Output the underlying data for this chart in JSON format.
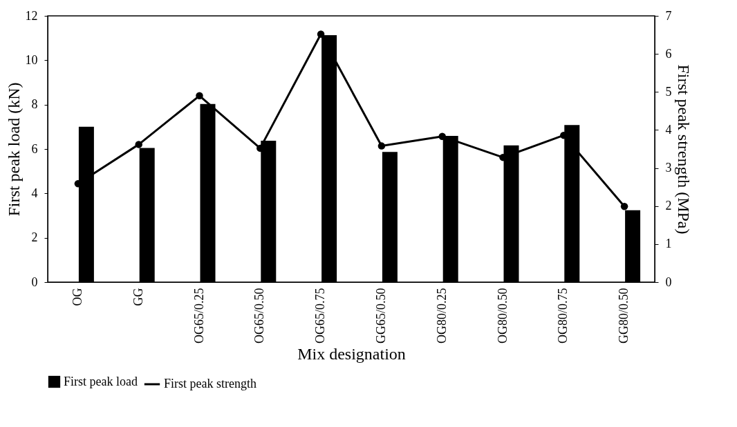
{
  "chart_data": {
    "type": "bar",
    "xlabel": "Mix designation",
    "ylabel": "First peak load (kN)",
    "y2label": "First peak strength (MPa)",
    "categories": [
      "OG",
      "GG",
      "OG65/0.25",
      "OG65/0.50",
      "OG65/0.75",
      "GG65/0.50",
      "OG80/0.25",
      "OG80/0.50",
      "OG80/0.75",
      "GG80/0.50"
    ],
    "series": [
      {
        "name": "First peak load",
        "color": "#000000",
        "values": [
          7.0,
          6.05,
          8.03,
          6.37,
          11.13,
          5.87,
          6.59,
          6.16,
          7.08,
          3.24
        ]
      },
      {
        "name": "First peak strength",
        "type": "line",
        "axis": "y2",
        "color": "#000000",
        "values": [
          2.59,
          3.62,
          4.9,
          3.52,
          6.52,
          3.58,
          3.83,
          3.28,
          3.86,
          1.99
        ]
      }
    ],
    "ylim": [
      0,
      12
    ],
    "yticks": [
      0,
      2,
      4,
      6,
      8,
      10,
      12
    ],
    "y2lim": [
      0,
      7
    ],
    "y2ticks": [
      0,
      1,
      2,
      3,
      4,
      5,
      6,
      7
    ],
    "marker": "circle",
    "line_style": "solid",
    "legend": "bottom left"
  }
}
